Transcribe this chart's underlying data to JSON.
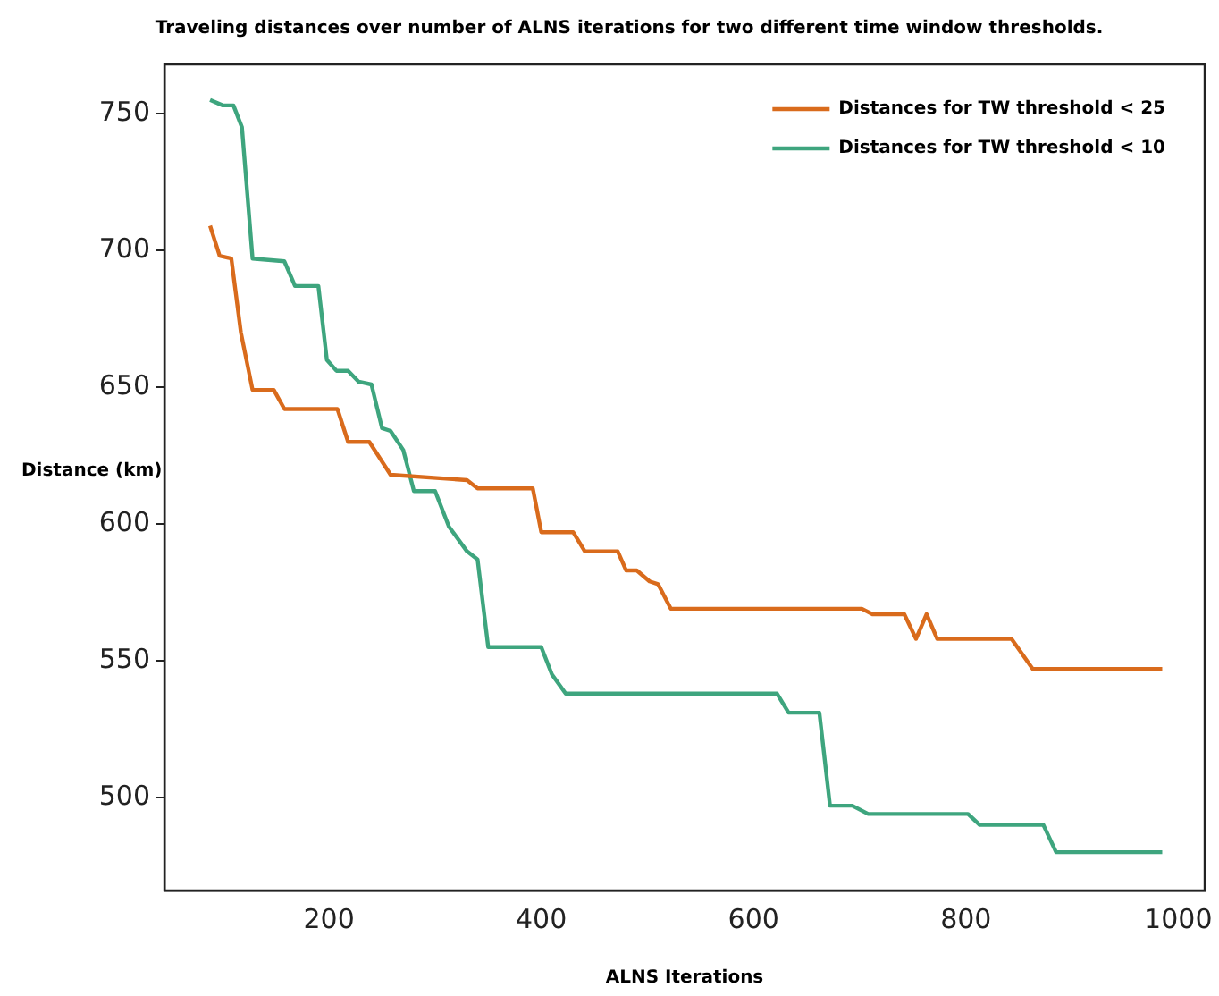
{
  "chart_data": {
    "type": "line",
    "title": "Traveling distances over number of ALNS iterations for two different time window thresholds.",
    "xlabel": "ALNS Iterations",
    "ylabel": "Distance (km)",
    "xlim": [
      45,
      1025
    ],
    "xticks": [
      200,
      400,
      600,
      800,
      1000
    ],
    "ylim": [
      466,
      768
    ],
    "yticks": [
      500,
      550,
      600,
      650,
      700,
      750
    ],
    "grid": false,
    "legend": "top right",
    "marker": "none",
    "line_style": "solid",
    "series": [
      {
        "name": "Distances for TW threshold < 25",
        "color": "#d96b1c",
        "x": [
          88,
          97,
          108,
          117,
          128,
          148,
          158,
          208,
          218,
          238,
          258,
          330,
          340,
          392,
          400,
          430,
          441,
          472,
          480,
          490,
          502,
          510,
          522,
          702,
          712,
          742,
          753,
          763,
          773,
          843,
          863,
          985
        ],
        "values": [
          709,
          698,
          697,
          670,
          649,
          649,
          642,
          642,
          630,
          630,
          618,
          616,
          613,
          613,
          597,
          597,
          590,
          590,
          583,
          583,
          579,
          578,
          569,
          569,
          567,
          567,
          558,
          567,
          558,
          558,
          547,
          547
        ]
      },
      {
        "name": "Distances for TW threshold < 10",
        "color": "#3ea57e",
        "x": [
          88,
          100,
          110,
          118,
          128,
          158,
          168,
          190,
          198,
          207,
          218,
          228,
          240,
          250,
          258,
          270,
          280,
          300,
          313,
          330,
          340,
          350,
          400,
          410,
          423,
          622,
          633,
          662,
          672,
          693,
          708,
          802,
          813,
          847,
          873,
          885,
          985
        ],
        "values": [
          755,
          753,
          753,
          745,
          697,
          696,
          687,
          687,
          660,
          656,
          656,
          652,
          651,
          635,
          634,
          627,
          612,
          612,
          599,
          590,
          587,
          555,
          555,
          545,
          538,
          538,
          531,
          531,
          497,
          497,
          494,
          494,
          490,
          490,
          490,
          480,
          480
        ]
      }
    ]
  }
}
